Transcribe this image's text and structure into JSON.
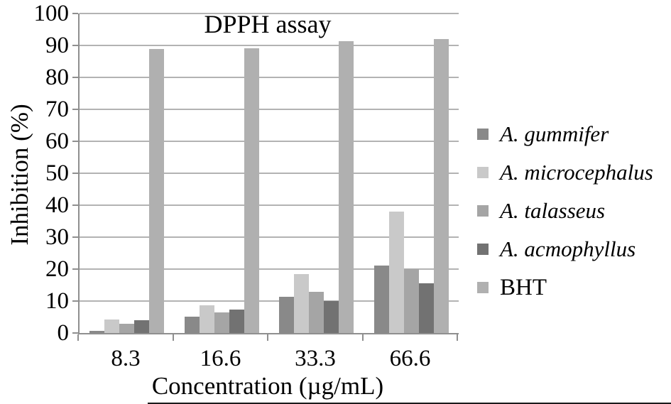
{
  "figure": {
    "title": "DPPH assay",
    "x_axis_title": "Concentration (µg/mL)",
    "y_axis_title": "Inhibition (%)"
  },
  "chart_data": {
    "type": "bar",
    "title": "DPPH assay",
    "xlabel": "Concentration (µg/mL)",
    "ylabel": "Inhibition (%)",
    "categories": [
      "8.3",
      "16.6",
      "33.3",
      "66.6"
    ],
    "series": [
      {
        "name": "A. gummifer",
        "italic": true,
        "color": "#898989",
        "values": [
          0.6,
          5.2,
          11.3,
          21.2
        ]
      },
      {
        "name": "A. microcephalus",
        "italic": true,
        "color": "#c9c9c9",
        "values": [
          4.2,
          8.7,
          18.5,
          37.9
        ]
      },
      {
        "name": "A. talasseus",
        "italic": true,
        "color": "#a5a5a5",
        "values": [
          2.8,
          6.5,
          12.9,
          20.0
        ]
      },
      {
        "name": "A. acmophyllus",
        "italic": true,
        "color": "#727272",
        "values": [
          4.1,
          7.3,
          10.0,
          15.6
        ]
      },
      {
        "name": "BHT",
        "italic": false,
        "color": "#b0b0b0",
        "values": [
          89.0,
          89.2,
          91.4,
          92.0
        ]
      }
    ],
    "ylim": [
      0,
      100
    ],
    "y_tick_step": 10,
    "y_ticks": [
      "0",
      "10",
      "20",
      "30",
      "40",
      "50",
      "60",
      "70",
      "80",
      "90",
      "100"
    ],
    "grid": true,
    "legend_position": "right"
  },
  "colors": {
    "axis": "#8f8f8f",
    "gridline": "#b3b3b3",
    "text": "#000000",
    "background": "#ffffff"
  }
}
